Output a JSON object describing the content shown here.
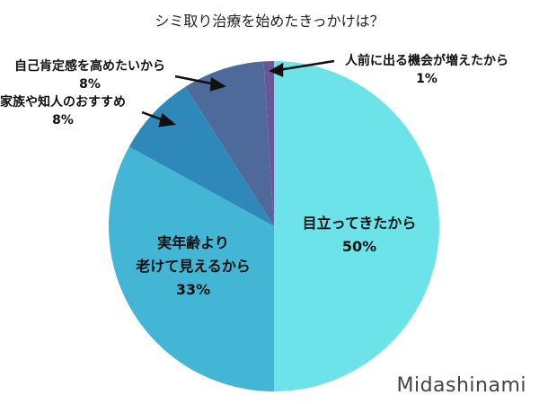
{
  "chart_data": {
    "type": "pie",
    "title": "シミ取り治療を始めたきっかけは？",
    "categories": [
      "目立ってきたから",
      "実年齢より老けて見えるから",
      "家族や知人のおすすめ",
      "自己肯定感を高めたいから",
      "人前に出る機会が増えたから"
    ],
    "values": [
      50,
      33,
      8,
      8,
      1
    ],
    "colors": [
      "#6ce3e8",
      "#43b6d6",
      "#2e88b9",
      "#4e6a9b",
      "#6a5694"
    ],
    "start_angle": "12 o'clock, clockwise",
    "legend": "none (direct labels with arrows)"
  },
  "title": "シミ取り治療を始めたきっかけは？",
  "labels": {
    "s1": {
      "line1": "目立ってきたから",
      "pct": "50%"
    },
    "s2": {
      "line1": "実年齢より",
      "line2": "老けて見えるから",
      "pct": "33%"
    },
    "s3": {
      "line1": "家族や知人のおすすめ",
      "pct": "8%"
    },
    "s4": {
      "line1": "自己肯定感を高めたいから",
      "pct": "8%"
    },
    "s5": {
      "line1": "人前に出る機会が増えたから",
      "pct": "1%"
    }
  },
  "brand": "Midashinami"
}
